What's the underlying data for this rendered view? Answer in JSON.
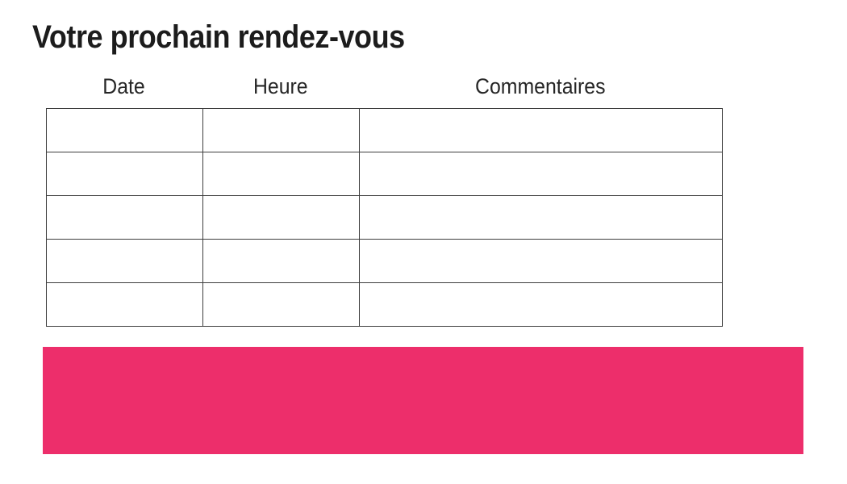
{
  "page": {
    "title": "Votre prochain rendez-vous"
  },
  "table": {
    "columns": [
      {
        "label": "Date"
      },
      {
        "label": "Heure"
      },
      {
        "label": "Commentaires"
      }
    ],
    "rows": [
      [
        "",
        "",
        ""
      ],
      [
        "",
        "",
        ""
      ],
      [
        "",
        "",
        ""
      ],
      [
        "",
        "",
        ""
      ],
      [
        "",
        "",
        ""
      ]
    ]
  },
  "banner": {
    "label": ""
  },
  "colors": {
    "accent_pink": "#ED2E6B",
    "table_border": "#3d3d3d",
    "title_text": "#1c1c1c",
    "header_text": "#262626",
    "background": "#ffffff"
  }
}
